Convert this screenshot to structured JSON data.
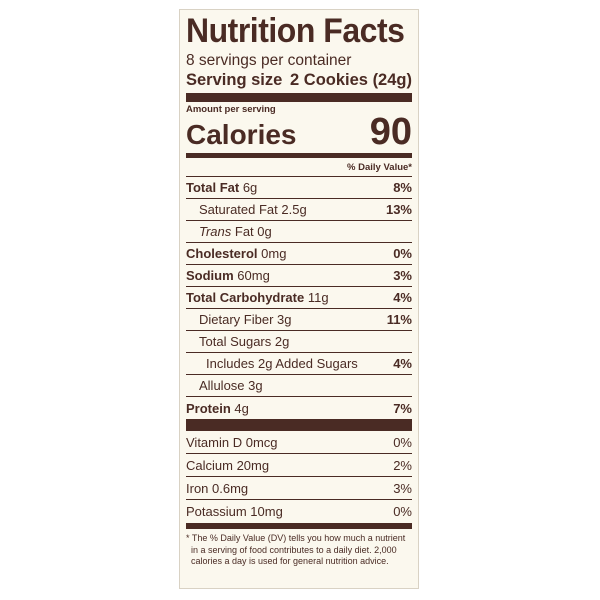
{
  "title": "Nutrition Facts",
  "servings": "8 servings per container",
  "serving_size": {
    "label": "Serving size",
    "value": "2 Cookies (24g)"
  },
  "amount_per_serving": "Amount per serving",
  "calories": {
    "label": "Calories",
    "value": "90"
  },
  "dv_header": "% Daily Value*",
  "nutrients": [
    {
      "name": "Total Fat",
      "amount": "6g",
      "dv": "8%"
    },
    {
      "name": "Saturated Fat 2.5g",
      "dv": "13%"
    },
    {
      "name": "Trans",
      "amount": "Fat 0g"
    },
    {
      "name": "Cholesterol",
      "amount": "0mg",
      "dv": "0%"
    },
    {
      "name": "Sodium",
      "amount": "60mg",
      "dv": "3%"
    },
    {
      "name": "Total Carbohydrate",
      "amount": "11g",
      "dv": "4%"
    },
    {
      "name": "Dietary Fiber 3g",
      "dv": "11%"
    },
    {
      "name": "Total Sugars 2g"
    },
    {
      "name": "Includes 2g Added Sugars",
      "dv": "4%"
    },
    {
      "name": "Allulose 3g"
    },
    {
      "name": "Protein",
      "amount": "4g",
      "dv": "7%"
    }
  ],
  "vitamins": [
    {
      "name": "Vitamin D 0mcg",
      "dv": "0%"
    },
    {
      "name": "Calcium 20mg",
      "dv": "2%"
    },
    {
      "name": "Iron 0.6mg",
      "dv": "3%"
    },
    {
      "name": "Potassium 10mg",
      "dv": "0%"
    }
  ],
  "footnote": "* The % Daily Value (DV) tells you how much a nutrient in a serving of food contributes to a daily diet. 2,000 calories a day is used for general nutrition advice."
}
